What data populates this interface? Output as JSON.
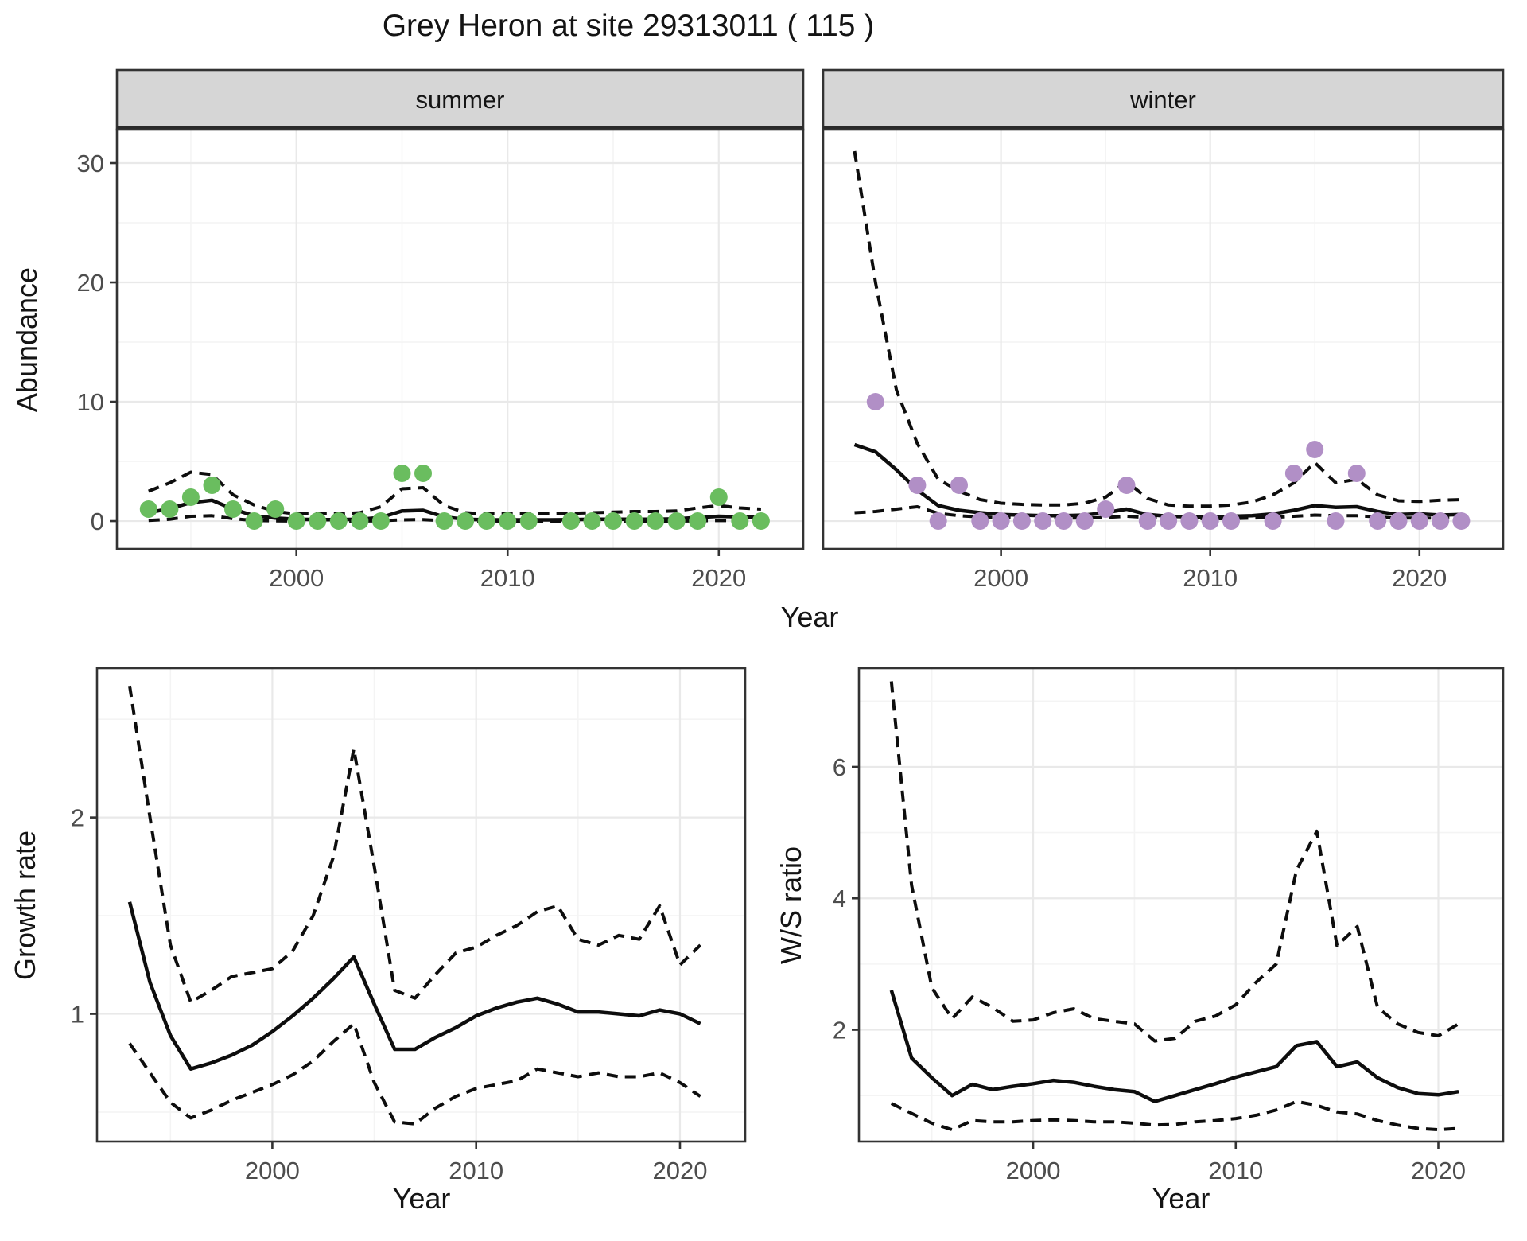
{
  "ui": {
    "title": "Grey Heron at site 29313011 ( 115 )"
  },
  "colors": {
    "summer_point": "#6abd5f",
    "winter_point": "#b18fc6",
    "line": "#0d0d0d",
    "panel_border": "#333333",
    "strip_fill": "#d6d6d6",
    "grid_major": "#e9e9e9",
    "grid_minor": "#f4f4f4",
    "tick_text": "#4d4d4d"
  },
  "chart_data": [
    {
      "type": "scatter",
      "title": "Grey Heron at site 29313011 ( 115 )",
      "xlabel": "Year",
      "ylabel": "Abundance",
      "xlim": [
        1991.5,
        2024
      ],
      "ylim": [
        -2.33,
        32.8
      ],
      "xticks": [
        2000,
        2010,
        2020
      ],
      "xticks_minor": [
        1995,
        2005,
        2015
      ],
      "yticks": [
        0,
        10,
        20,
        30
      ],
      "yticks_minor": [
        5,
        15,
        25
      ],
      "grid": "on",
      "legend": "none",
      "years": [
        1993,
        1994,
        1995,
        1996,
        1997,
        1998,
        1999,
        2000,
        2001,
        2002,
        2003,
        2004,
        2005,
        2006,
        2007,
        2008,
        2009,
        2010,
        2011,
        2012,
        2013,
        2014,
        2015,
        2016,
        2017,
        2018,
        2019,
        2020,
        2021,
        2022
      ],
      "facets": [
        {
          "label": "summer",
          "point_color": "#6abd5f",
          "points_x": [
            1993,
            1994,
            1995,
            1996,
            1997,
            1998,
            1999,
            2000,
            2001,
            2002,
            2003,
            2004,
            2005,
            2006,
            2007,
            2008,
            2009,
            2010,
            2011,
            2013,
            2014,
            2015,
            2016,
            2017,
            2018,
            2019,
            2020,
            2021,
            2022
          ],
          "points_y": [
            1,
            1,
            2,
            3,
            1,
            0,
            1,
            0,
            0,
            0,
            0,
            0,
            4,
            4,
            0,
            0,
            0,
            0,
            0,
            0,
            0,
            0,
            0,
            0,
            0,
            0,
            2,
            0,
            0
          ],
          "fit": [
            0.7,
            1.05,
            1.55,
            1.75,
            1.0,
            0.45,
            0.25,
            0.15,
            0.12,
            0.12,
            0.15,
            0.3,
            0.85,
            0.9,
            0.35,
            0.15,
            0.1,
            0.1,
            0.1,
            0.1,
            0.12,
            0.15,
            0.15,
            0.15,
            0.15,
            0.18,
            0.3,
            0.4,
            0.35,
            0.3
          ],
          "ci_upper": [
            2.5,
            3.2,
            4.1,
            3.9,
            2.2,
            1.35,
            0.8,
            0.6,
            0.6,
            0.6,
            0.7,
            1.2,
            2.7,
            2.8,
            1.3,
            0.7,
            0.6,
            0.6,
            0.6,
            0.6,
            0.65,
            0.7,
            0.75,
            0.8,
            0.8,
            0.85,
            1.1,
            1.3,
            1.1,
            1.0
          ],
          "ci_lower": [
            0.05,
            0.15,
            0.4,
            0.45,
            0.2,
            0.05,
            0.02,
            0.0,
            0.0,
            0.0,
            0.0,
            0.02,
            0.1,
            0.12,
            0.03,
            0.0,
            0.0,
            0.0,
            0.0,
            0.0,
            0.0,
            0.0,
            0.0,
            0.0,
            0.0,
            0.0,
            0.02,
            0.05,
            0.03,
            0.02
          ]
        },
        {
          "label": "winter",
          "point_color": "#b18fc6",
          "points_x": [
            1994,
            1996,
            1997,
            1998,
            1999,
            2000,
            2001,
            2002,
            2003,
            2004,
            2005,
            2006,
            2007,
            2008,
            2009,
            2010,
            2011,
            2013,
            2014,
            2015,
            2016,
            2017,
            2018,
            2019,
            2020,
            2021,
            2022
          ],
          "points_y": [
            10,
            3,
            0,
            3,
            0,
            0,
            0,
            0,
            0,
            0,
            1,
            3,
            0,
            0,
            0,
            0,
            0,
            0,
            4,
            6,
            0,
            4,
            0,
            0,
            0,
            0,
            0
          ],
          "fit": [
            6.4,
            5.8,
            4.3,
            2.6,
            1.3,
            0.9,
            0.7,
            0.55,
            0.5,
            0.45,
            0.45,
            0.5,
            0.7,
            1.0,
            0.55,
            0.4,
            0.35,
            0.35,
            0.4,
            0.45,
            0.6,
            0.9,
            1.3,
            1.15,
            1.2,
            0.8,
            0.55,
            0.6,
            0.5,
            0.55
          ],
          "ci_upper": [
            31.0,
            20.0,
            11.0,
            6.5,
            3.5,
            2.5,
            1.8,
            1.5,
            1.4,
            1.35,
            1.35,
            1.5,
            2.0,
            3.3,
            1.9,
            1.35,
            1.25,
            1.25,
            1.35,
            1.6,
            2.2,
            3.2,
            4.9,
            3.2,
            3.5,
            2.2,
            1.7,
            1.65,
            1.75,
            1.8
          ],
          "ci_lower": [
            0.7,
            0.8,
            1.0,
            1.2,
            0.65,
            0.45,
            0.35,
            0.3,
            0.25,
            0.25,
            0.25,
            0.25,
            0.3,
            0.4,
            0.3,
            0.2,
            0.2,
            0.2,
            0.2,
            0.25,
            0.3,
            0.4,
            0.5,
            0.45,
            0.45,
            0.35,
            0.25,
            0.25,
            0.25,
            0.25
          ]
        }
      ]
    },
    {
      "type": "line",
      "xlabel": "Year",
      "ylabel": "Growth rate",
      "xlim": [
        1991.4,
        2023.2
      ],
      "ylim": [
        0.35,
        2.76
      ],
      "xticks": [
        2000,
        2010,
        2020
      ],
      "xticks_minor": [
        1995,
        2005,
        2015
      ],
      "yticks": [
        1,
        2
      ],
      "yticks_minor": [
        0.5,
        1.5,
        2.5
      ],
      "grid": "on",
      "legend": "none",
      "years": [
        1993,
        1994,
        1995,
        1996,
        1997,
        1998,
        1999,
        2000,
        2001,
        2002,
        2003,
        2004,
        2005,
        2006,
        2007,
        2008,
        2009,
        2010,
        2011,
        2012,
        2013,
        2014,
        2015,
        2016,
        2017,
        2018,
        2019,
        2020,
        2021
      ],
      "series": [
        {
          "name": "median",
          "style": "solid",
          "values": [
            1.57,
            1.16,
            0.89,
            0.72,
            0.75,
            0.79,
            0.84,
            0.91,
            0.99,
            1.08,
            1.18,
            1.29,
            1.05,
            0.82,
            0.82,
            0.88,
            0.93,
            0.99,
            1.03,
            1.06,
            1.08,
            1.05,
            1.01,
            1.01,
            1.0,
            0.99,
            1.02,
            1.0,
            0.95
          ]
        },
        {
          "name": "upper CI",
          "style": "dashed",
          "values": [
            2.67,
            2.0,
            1.35,
            1.06,
            1.12,
            1.19,
            1.21,
            1.23,
            1.32,
            1.5,
            1.8,
            2.35,
            1.75,
            1.12,
            1.08,
            1.2,
            1.31,
            1.34,
            1.4,
            1.45,
            1.52,
            1.55,
            1.38,
            1.35,
            1.4,
            1.38,
            1.55,
            1.25,
            1.35
          ]
        },
        {
          "name": "lower CI",
          "style": "dashed",
          "values": [
            0.85,
            0.7,
            0.55,
            0.47,
            0.51,
            0.56,
            0.6,
            0.64,
            0.69,
            0.76,
            0.86,
            0.95,
            0.65,
            0.45,
            0.44,
            0.52,
            0.58,
            0.62,
            0.64,
            0.66,
            0.72,
            0.7,
            0.68,
            0.7,
            0.68,
            0.68,
            0.7,
            0.65,
            0.58
          ]
        }
      ]
    },
    {
      "type": "line",
      "xlabel": "Year",
      "ylabel": "W/S ratio",
      "xlim": [
        1991.4,
        2023.2
      ],
      "ylim": [
        0.3,
        7.5
      ],
      "xticks": [
        2000,
        2010,
        2020
      ],
      "xticks_minor": [
        1995,
        2005,
        2015
      ],
      "yticks": [
        2,
        4,
        6
      ],
      "yticks_minor": [
        1,
        3,
        5,
        7
      ],
      "grid": "on",
      "legend": "none",
      "years": [
        1993,
        1994,
        1995,
        1996,
        1997,
        1998,
        1999,
        2000,
        2001,
        2002,
        2003,
        2004,
        2005,
        2006,
        2007,
        2008,
        2009,
        2010,
        2011,
        2012,
        2013,
        2014,
        2015,
        2016,
        2017,
        2018,
        2019,
        2020,
        2021
      ],
      "series": [
        {
          "name": "median",
          "style": "solid",
          "values": [
            2.6,
            1.57,
            1.27,
            1.0,
            1.17,
            1.09,
            1.14,
            1.18,
            1.23,
            1.2,
            1.14,
            1.09,
            1.06,
            0.91,
            1.0,
            1.09,
            1.18,
            1.28,
            1.36,
            1.44,
            1.76,
            1.82,
            1.44,
            1.51,
            1.27,
            1.12,
            1.03,
            1.01,
            1.06
          ]
        },
        {
          "name": "upper CI",
          "style": "dashed",
          "values": [
            7.3,
            4.2,
            2.64,
            2.17,
            2.5,
            2.34,
            2.13,
            2.15,
            2.26,
            2.32,
            2.17,
            2.13,
            2.09,
            1.83,
            1.87,
            2.13,
            2.21,
            2.38,
            2.72,
            3.0,
            4.43,
            5.02,
            3.28,
            3.57,
            2.34,
            2.09,
            1.96,
            1.91,
            2.09
          ]
        },
        {
          "name": "lower CI",
          "style": "dashed",
          "values": [
            0.88,
            0.73,
            0.58,
            0.48,
            0.62,
            0.6,
            0.6,
            0.62,
            0.63,
            0.62,
            0.6,
            0.6,
            0.58,
            0.55,
            0.56,
            0.6,
            0.62,
            0.65,
            0.7,
            0.78,
            0.91,
            0.85,
            0.75,
            0.72,
            0.62,
            0.55,
            0.5,
            0.48,
            0.5
          ]
        }
      ]
    }
  ]
}
